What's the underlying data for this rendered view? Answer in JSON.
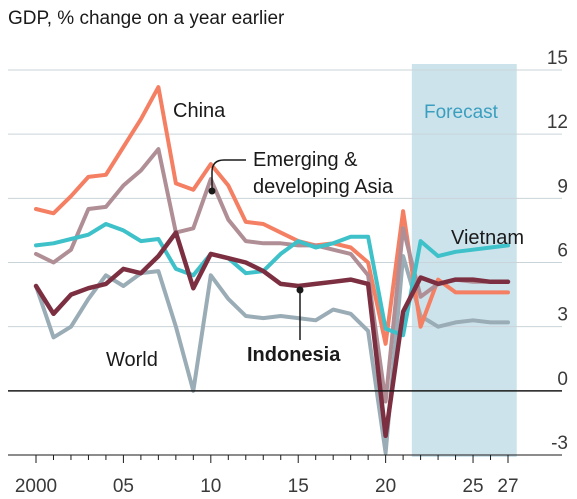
{
  "chart_data": {
    "type": "line",
    "title": "GDP, % change on a year earlier",
    "xlabel": "",
    "ylabel": "",
    "xlim": [
      1999.5,
      2027.5
    ],
    "ylim": [
      -3,
      15
    ],
    "yticks": [
      -3,
      0,
      3,
      6,
      9,
      12,
      15
    ],
    "xticks": [
      {
        "value": 2000,
        "label": "2000"
      },
      {
        "value": 2005,
        "label": "05"
      },
      {
        "value": 2010,
        "label": "10"
      },
      {
        "value": 2015,
        "label": "15"
      },
      {
        "value": 2020,
        "label": "20"
      },
      {
        "value": 2025,
        "label": "25"
      },
      {
        "value": 2027,
        "label": "27"
      }
    ],
    "grid": "horizontal",
    "forecast": {
      "label": "Forecast",
      "start": 2021.5,
      "end": 2027.5,
      "color": "#cde3ec"
    },
    "series": [
      {
        "name": "World",
        "color": "#9aacb6",
        "x": [
          2000,
          2001,
          2002,
          2003,
          2004,
          2005,
          2006,
          2007,
          2008,
          2009,
          2010,
          2011,
          2012,
          2013,
          2014,
          2015,
          2016,
          2017,
          2018,
          2019,
          2020,
          2021,
          2022,
          2023,
          2024,
          2025,
          2026,
          2027
        ],
        "y": [
          4.9,
          2.5,
          3.0,
          4.3,
          5.4,
          4.9,
          5.5,
          5.6,
          3.0,
          0.0,
          5.4,
          4.3,
          3.5,
          3.4,
          3.5,
          3.4,
          3.3,
          3.8,
          3.6,
          2.8,
          -2.9,
          6.3,
          3.5,
          3.0,
          3.2,
          3.3,
          3.2,
          3.2
        ]
      },
      {
        "name": "China",
        "color": "#f47f63",
        "x": [
          2000,
          2001,
          2002,
          2003,
          2004,
          2005,
          2006,
          2007,
          2008,
          2009,
          2010,
          2011,
          2012,
          2013,
          2014,
          2015,
          2016,
          2017,
          2018,
          2019,
          2020,
          2021,
          2022,
          2023,
          2024,
          2025,
          2026,
          2027
        ],
        "y": [
          8.5,
          8.3,
          9.1,
          10.0,
          10.1,
          11.4,
          12.7,
          14.2,
          9.7,
          9.4,
          10.6,
          9.6,
          7.9,
          7.8,
          7.4,
          7.0,
          6.8,
          6.9,
          6.7,
          6.0,
          2.2,
          8.4,
          3.0,
          5.2,
          4.6,
          4.6,
          4.6,
          4.6
        ]
      },
      {
        "name": "Emerging & developing Asia",
        "color": "#b08e96",
        "x": [
          2000,
          2001,
          2002,
          2003,
          2004,
          2005,
          2006,
          2007,
          2008,
          2009,
          2010,
          2011,
          2012,
          2013,
          2014,
          2015,
          2016,
          2017,
          2018,
          2019,
          2020,
          2021,
          2022,
          2023,
          2024,
          2025,
          2026,
          2027
        ],
        "y": [
          6.4,
          6.0,
          6.6,
          8.5,
          8.6,
          9.6,
          10.3,
          11.3,
          7.4,
          7.6,
          9.9,
          8.0,
          7.0,
          6.9,
          6.9,
          6.8,
          6.8,
          6.6,
          6.4,
          5.4,
          -0.5,
          7.6,
          4.4,
          5.0,
          5.2,
          5.1,
          5.1,
          5.1
        ]
      },
      {
        "name": "Vietnam",
        "color": "#3ec1c9",
        "x": [
          2000,
          2001,
          2002,
          2003,
          2004,
          2005,
          2006,
          2007,
          2008,
          2009,
          2010,
          2011,
          2012,
          2013,
          2014,
          2015,
          2016,
          2017,
          2018,
          2019,
          2020,
          2021,
          2022,
          2023,
          2024,
          2025,
          2026,
          2027
        ],
        "y": [
          6.8,
          6.9,
          7.1,
          7.3,
          7.8,
          7.5,
          7.0,
          7.1,
          5.7,
          5.4,
          6.4,
          6.2,
          5.5,
          5.6,
          6.4,
          7.0,
          6.7,
          6.9,
          7.2,
          7.2,
          2.9,
          2.6,
          7.0,
          6.3,
          6.5,
          6.6,
          6.7,
          6.8
        ]
      },
      {
        "name": "Indonesia",
        "color": "#7b2f40",
        "x": [
          2000,
          2001,
          2002,
          2003,
          2004,
          2005,
          2006,
          2007,
          2008,
          2009,
          2010,
          2011,
          2012,
          2013,
          2014,
          2015,
          2016,
          2017,
          2018,
          2019,
          2020,
          2021,
          2022,
          2023,
          2024,
          2025,
          2026,
          2027
        ],
        "y": [
          4.9,
          3.6,
          4.5,
          4.8,
          5.0,
          5.7,
          5.5,
          6.3,
          7.4,
          4.8,
          6.4,
          6.2,
          6.0,
          5.6,
          5.0,
          4.9,
          5.0,
          5.1,
          5.2,
          5.0,
          -2.1,
          3.7,
          5.3,
          5.0,
          5.2,
          5.2,
          5.1,
          5.1
        ]
      }
    ],
    "labels": {
      "china": "China",
      "em_line1": "Emerging &",
      "em_line2": "developing Asia",
      "vietnam": "Vietnam",
      "world": "World",
      "indonesia": "Indonesia"
    }
  }
}
